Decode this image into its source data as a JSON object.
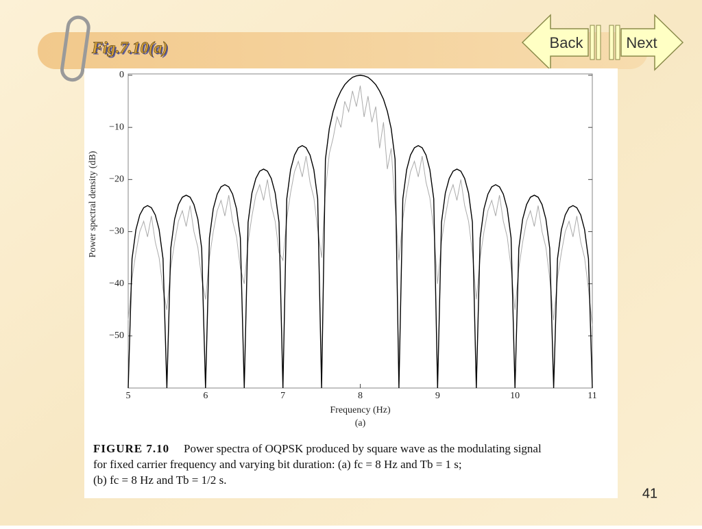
{
  "slide": {
    "title": "Fig.7.10(a)",
    "back": "Back",
    "next": "Next",
    "page_number": "41",
    "caption": {
      "label": "FIGURE 7.10",
      "lines": [
        "Power spectra of OQPSK produced by square wave as the modulating signal",
        "for fixed carrier frequency and varying bit duration: (a) fc = 8 Hz and Tb = 1 s;",
        "(b) fc = 8 Hz and Tb = 1/2 s."
      ]
    }
  },
  "chart_data": {
    "type": "line",
    "x_label": "Frequency (Hz)",
    "subtitle": "(a)",
    "y_label": "Power spectral density (dB)",
    "xlim": [
      5,
      11
    ],
    "xticks": [
      5,
      6,
      7,
      8,
      9,
      10,
      11
    ],
    "ylim": [
      -60,
      0
    ],
    "yticks": [
      0,
      {
        "value": -10,
        "label": "−10"
      },
      {
        "value": -20,
        "label": "−20"
      },
      {
        "value": -30,
        "label": "−30"
      },
      {
        "value": -40,
        "label": "−40"
      },
      {
        "value": -50,
        "label": "−50"
      }
    ],
    "x": [
      5,
      5.05,
      5.1,
      5.15,
      5.2,
      5.25,
      5.3,
      5.35,
      5.4,
      5.45,
      5.5,
      5.55,
      5.6,
      5.65,
      5.7,
      5.75,
      5.8,
      5.85,
      5.9,
      5.95,
      6,
      6.05,
      6.1,
      6.15,
      6.2,
      6.25,
      6.3,
      6.35,
      6.4,
      6.45,
      6.5,
      6.55,
      6.6,
      6.65,
      6.7,
      6.75,
      6.8,
      6.85,
      6.9,
      6.95,
      7,
      7.05,
      7.1,
      7.15,
      7.2,
      7.25,
      7.3,
      7.35,
      7.4,
      7.45,
      7.5,
      7.55,
      7.6,
      7.65,
      7.7,
      7.75,
      7.8,
      7.85,
      7.9,
      7.95,
      8,
      8.05,
      8.1,
      8.15,
      8.2,
      8.25,
      8.3,
      8.35,
      8.4,
      8.45,
      8.5,
      8.55,
      8.6,
      8.65,
      8.7,
      8.75,
      8.8,
      8.85,
      8.9,
      8.95,
      9,
      9.05,
      9.1,
      9.15,
      9.2,
      9.25,
      9.3,
      9.35,
      9.4,
      9.45,
      9.5,
      9.55,
      9.6,
      9.65,
      9.7,
      9.75,
      9.8,
      9.85,
      9.9,
      9.95,
      10,
      10.05,
      10.1,
      10.15,
      10.2,
      10.25,
      10.3,
      10.35,
      10.4,
      10.45,
      10.5,
      10.55,
      10.6,
      10.65,
      10.7,
      10.75,
      10.8,
      10.85,
      10.9,
      10.95,
      11
    ],
    "series": [
      {
        "color": "#aaaaaa",
        "values": [
          -47,
          -39,
          -34,
          -30,
          -28,
          -31,
          -27,
          -32,
          -35,
          -41,
          -45,
          -37,
          -32,
          -28,
          -26,
          -29,
          -25,
          -30,
          -33,
          -39,
          -43,
          -35,
          -30,
          -26,
          -24,
          -27,
          -23,
          -28,
          -31,
          -37,
          -40,
          -32,
          -27,
          -23,
          -21,
          -24,
          -20,
          -25,
          -28,
          -34,
          -35.5,
          -27.5,
          -22.5,
          -18.5,
          -16.5,
          -19.5,
          -15.5,
          -20.5,
          -23.5,
          -29.5,
          -35,
          -22,
          -15,
          -12,
          -8,
          -10,
          -5,
          -7,
          -3,
          -6,
          -2,
          -8,
          -4,
          -9,
          -6,
          -14,
          -9,
          -18,
          -14,
          -25,
          -35.5,
          -27.5,
          -22.5,
          -18.5,
          -16.5,
          -19.5,
          -15.5,
          -20.5,
          -23.5,
          -29.5,
          -40,
          -32,
          -27,
          -23,
          -21,
          -24,
          -20,
          -25,
          -28,
          -34,
          -43,
          -35,
          -30,
          -26,
          -24,
          -27,
          -23,
          -28,
          -31,
          -37,
          -45,
          -37,
          -32,
          -28,
          -26,
          -29,
          -25,
          -30,
          -33,
          -39,
          -47,
          -39,
          -34,
          -30,
          -28,
          -31,
          -27,
          -32,
          -35,
          -41,
          -48
        ]
      },
      {
        "color": "#000000",
        "values": [
          -60,
          -35.2,
          -29.6,
          -26.8,
          -25.4,
          -25,
          -25.4,
          -26.8,
          -29.6,
          -35.2,
          -60,
          -33.2,
          -27.6,
          -24.8,
          -23.4,
          -23,
          -23.4,
          -24.8,
          -27.6,
          -33.2,
          -60,
          -31.2,
          -25.6,
          -22.8,
          -21.4,
          -21,
          -21.4,
          -22.8,
          -25.6,
          -31.2,
          -60,
          -28.2,
          -22.6,
          -19.8,
          -18.4,
          -18,
          -18.4,
          -19.8,
          -22.6,
          -28.2,
          -60,
          -23.7,
          -18.1,
          -15.3,
          -13.9,
          -13.5,
          -13.9,
          -15.3,
          -18.1,
          -23.7,
          -60,
          -16.1,
          -10.2,
          -6.9,
          -4.6,
          -3,
          -1.8,
          -1,
          -0.4,
          -0.1,
          0,
          -0.1,
          -0.4,
          -1,
          -1.8,
          -3,
          -4.6,
          -6.9,
          -10.2,
          -16.1,
          -60,
          -23.7,
          -18.1,
          -15.3,
          -13.9,
          -13.5,
          -13.9,
          -15.3,
          -18.1,
          -23.7,
          -60,
          -28.2,
          -22.6,
          -19.8,
          -18.4,
          -18,
          -18.4,
          -19.8,
          -22.6,
          -28.2,
          -60,
          -31.2,
          -25.6,
          -22.8,
          -21.4,
          -21,
          -21.4,
          -22.8,
          -25.6,
          -31.2,
          -60,
          -33.2,
          -27.6,
          -24.8,
          -23.4,
          -23,
          -23.4,
          -24.8,
          -27.6,
          -33.2,
          -60,
          -35.2,
          -29.6,
          -26.8,
          -25.4,
          -25,
          -25.4,
          -26.8,
          -29.6,
          -35.2,
          -60
        ]
      }
    ]
  }
}
